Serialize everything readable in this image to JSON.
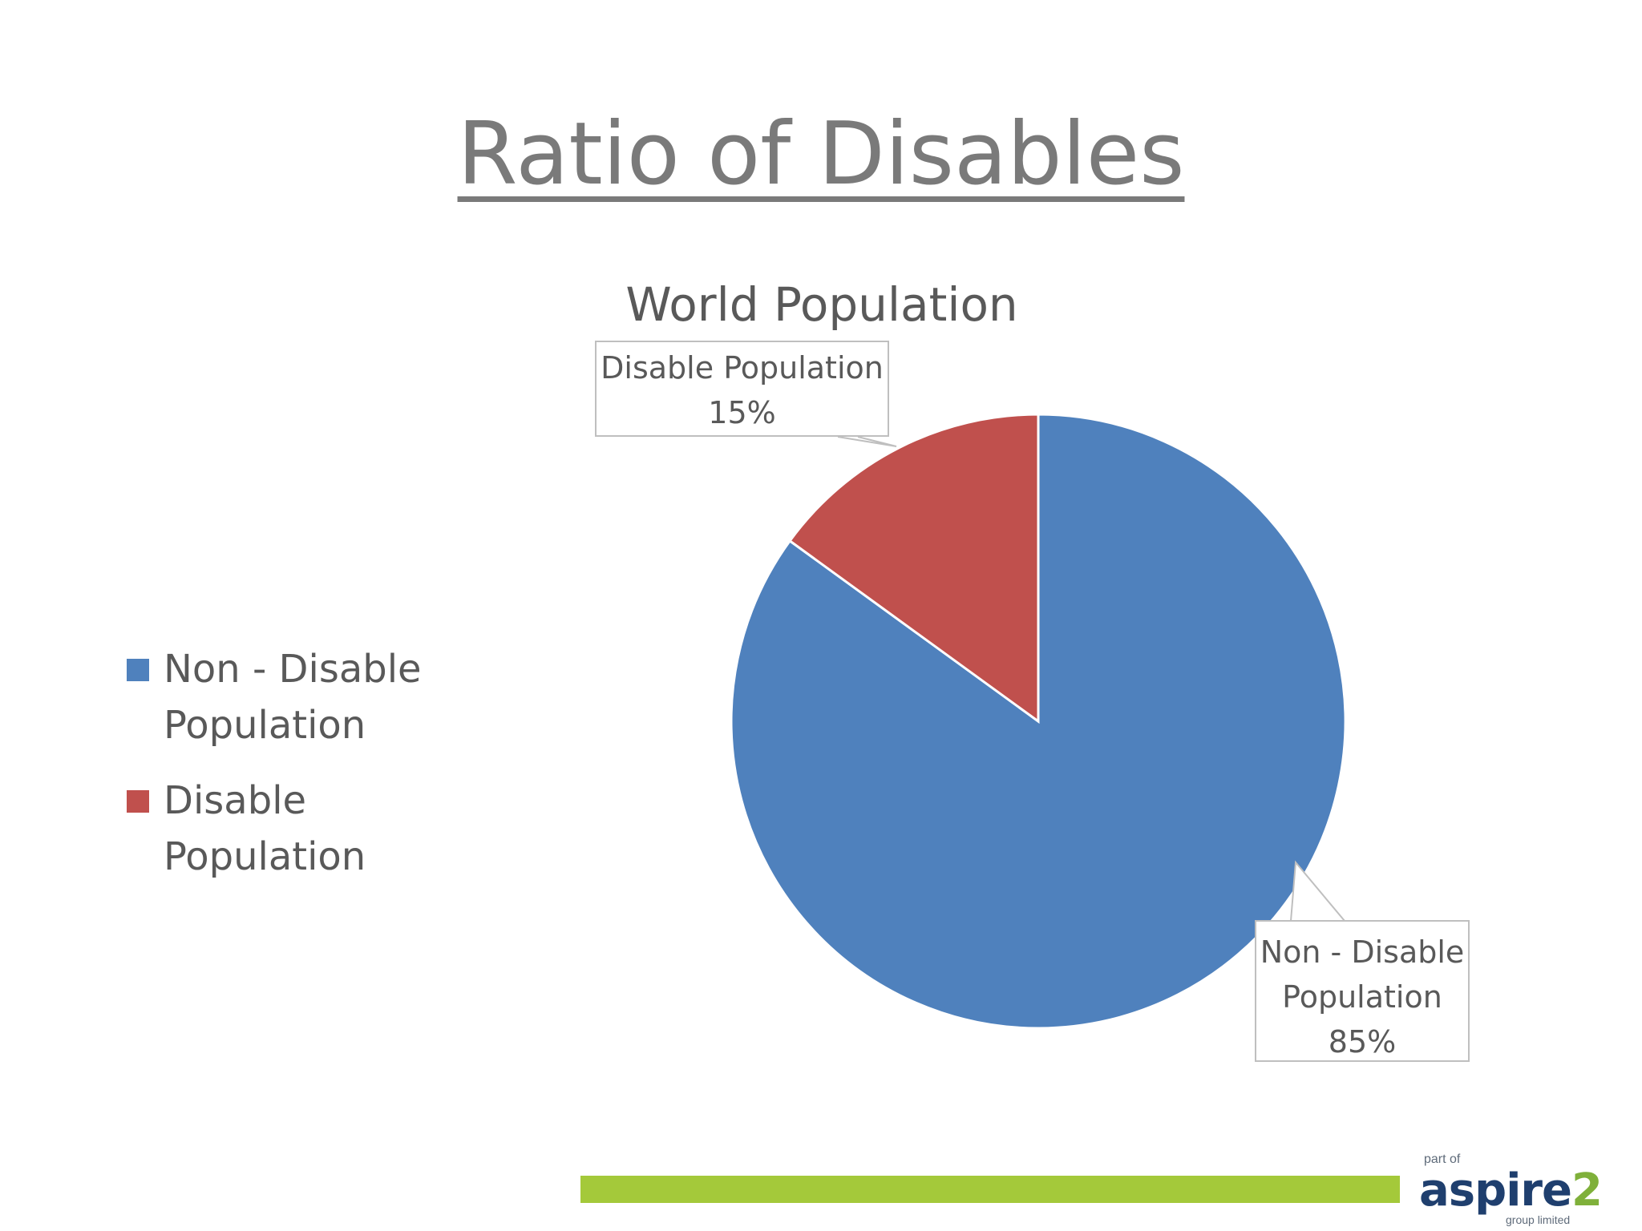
{
  "slide": {
    "title": "Ratio of Disables"
  },
  "chart_data": {
    "type": "pie",
    "title": "World Population",
    "categories": [
      "Non - Disable Population",
      "Disable Population"
    ],
    "values": [
      85,
      15
    ],
    "unit": "%",
    "colors": [
      "#4f81bd",
      "#c0504d"
    ],
    "legend_position": "left",
    "data_labels": [
      {
        "lines": [
          "Non - Disable",
          "Population",
          "85%"
        ]
      },
      {
        "lines": [
          "Disable Population",
          "15%"
        ]
      }
    ]
  },
  "legend": {
    "items": [
      {
        "label": "Non - Disable Population",
        "color": "#4f81bd"
      },
      {
        "label": "Disable Population",
        "color": "#c0504d"
      }
    ]
  },
  "footer": {
    "logo_small_top": "part of",
    "logo_main": "aspire",
    "logo_suffix": "2",
    "logo_small_bottom": "group limited",
    "bar_color": "#a4c93a"
  }
}
